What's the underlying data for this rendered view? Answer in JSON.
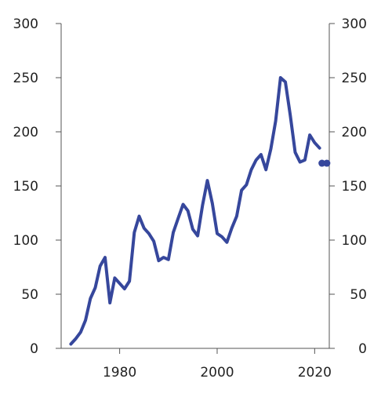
{
  "chart_data": {
    "type": "line",
    "title": "",
    "xlabel": "",
    "ylabel": "",
    "xlim": [
      1968,
      2023
    ],
    "ylim": [
      0,
      300
    ],
    "x_ticks": [
      1980,
      2000,
      2020
    ],
    "y_ticks": [
      0,
      50,
      100,
      150,
      200,
      250,
      300
    ],
    "grid": false,
    "legend": "none",
    "dual_y_axis": true,
    "series": [
      {
        "color": "#36479c",
        "style": "solid",
        "x": [
          1970,
          1971,
          1972,
          1973,
          1974,
          1975,
          1976,
          1977,
          1978,
          1979,
          1980,
          1981,
          1982,
          1983,
          1984,
          1985,
          1986,
          1987,
          1988,
          1989,
          1990,
          1991,
          1992,
          1993,
          1994,
          1995,
          1996,
          1997,
          1998,
          1999,
          2000,
          2001,
          2002,
          2003,
          2004,
          2005,
          2006,
          2007,
          2008,
          2009,
          2010,
          2011,
          2012,
          2013,
          2014,
          2015,
          2016,
          2017,
          2018,
          2019,
          2020,
          2021
        ],
        "y": [
          4,
          9,
          15,
          26,
          46,
          56,
          76,
          84,
          42,
          65,
          60,
          55,
          62,
          107,
          122,
          111,
          106,
          99,
          81,
          84,
          82,
          107,
          120,
          133,
          127,
          110,
          104,
          132,
          155,
          134,
          106,
          103,
          98,
          111,
          122,
          146,
          151,
          165,
          174,
          179,
          165,
          184,
          210,
          250,
          246,
          215,
          181,
          172,
          174,
          197,
          190,
          185
        ]
      },
      {
        "color": "#36479c",
        "style": "markers",
        "x": [
          2021.5,
          2022.5
        ],
        "y": [
          171,
          171
        ]
      }
    ]
  }
}
